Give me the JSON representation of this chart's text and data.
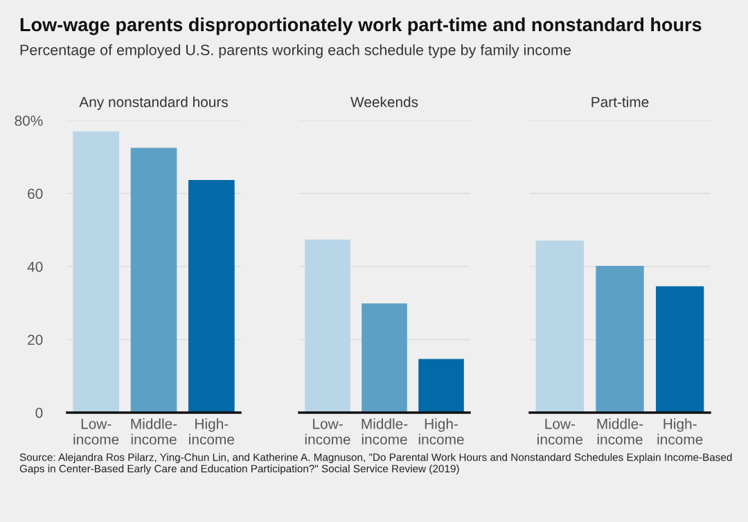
{
  "chart_data": [
    {
      "type": "bar",
      "title": "Any nonstandard hours",
      "categories": [
        "Low-\nincome",
        "Middle-\nincome",
        "High-\nincome"
      ],
      "values": [
        77.0,
        72.5,
        63.7
      ],
      "colors": [
        "#b8d6e8",
        "#5da0c6",
        "#016aa7"
      ],
      "ylim": [
        0,
        80
      ],
      "yticks": [
        0,
        20,
        40,
        60,
        {
          "value": 80,
          "label": "80%"
        }
      ],
      "grid": "y",
      "annotations": [
        "Low-wage parents disproportionately work part-time and nonstandard hours",
        "Percentage of employed U.S. parents working each schedule type by family income",
        "Source: Alejandra Ros Pilarz, Ying-Chun Lin, and Katherine A. Magnuson, \"Do Parental Work Hours and Nonstandard Schedules Explain Income-Based Gaps in Center-Based Early Care and Education Participation?\" Social Service Review (2019)"
      ]
    },
    {
      "type": "bar",
      "title": "Weekends",
      "categories": [
        "Low-\nincome",
        "Middle-\nincome",
        "High-\nincome"
      ],
      "values": [
        47.4,
        29.9,
        14.7
      ],
      "colors": [
        "#b8d6e8",
        "#5da0c6",
        "#016aa7"
      ],
      "ylim": [
        0,
        80
      ],
      "yticks": [
        0,
        20,
        40,
        60,
        80
      ],
      "grid": "y",
      "tick_labels": "x"
    },
    {
      "type": "bar",
      "title": "Part-time",
      "categories": [
        "Low-\nincome",
        "Middle-\nincome",
        "High-\nincome"
      ],
      "values": [
        47.1,
        40.2,
        34.6
      ],
      "colors": [
        "#b8d6e8",
        "#5da0c6",
        "#016aa7"
      ],
      "ylim": [
        0,
        80
      ],
      "yticks": [
        0,
        20,
        40,
        60,
        80
      ],
      "grid": "y",
      "tick_labels": "x"
    }
  ]
}
